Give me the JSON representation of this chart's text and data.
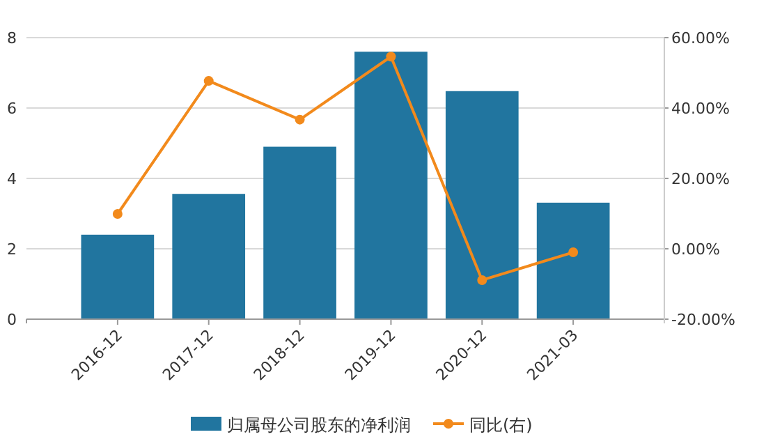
{
  "chart_data": {
    "type": "bar",
    "categories": [
      "2016-12",
      "2017-12",
      "2018-12",
      "2019-12",
      "2020-12",
      "2021-03"
    ],
    "series": [
      {
        "name": "归属母公司股东的净利润",
        "color": "#21759f",
        "values": [
          2.4,
          3.56,
          4.9,
          7.6,
          6.48,
          3.31
        ]
      },
      {
        "name": "同比(右)",
        "type": "line",
        "axis": "y2",
        "color": "#f28a1c",
        "values": [
          9.9,
          47.7,
          36.7,
          54.6,
          -8.9,
          -1.0
        ]
      }
    ],
    "ylim": [
      0,
      8
    ],
    "yticks": [
      0,
      2,
      4,
      6,
      8
    ],
    "y2lim": [
      -20,
      60
    ],
    "y2ticks": [
      {
        "value": -20,
        "label": "-20.00%"
      },
      {
        "value": 0,
        "label": "0.00%"
      },
      {
        "value": 20,
        "label": "20.00%"
      },
      {
        "value": 40,
        "label": "40.00%"
      },
      {
        "value": 60,
        "label": "60.00%"
      }
    ],
    "grid": "y",
    "legend": "bottom",
    "marker": "circle"
  }
}
